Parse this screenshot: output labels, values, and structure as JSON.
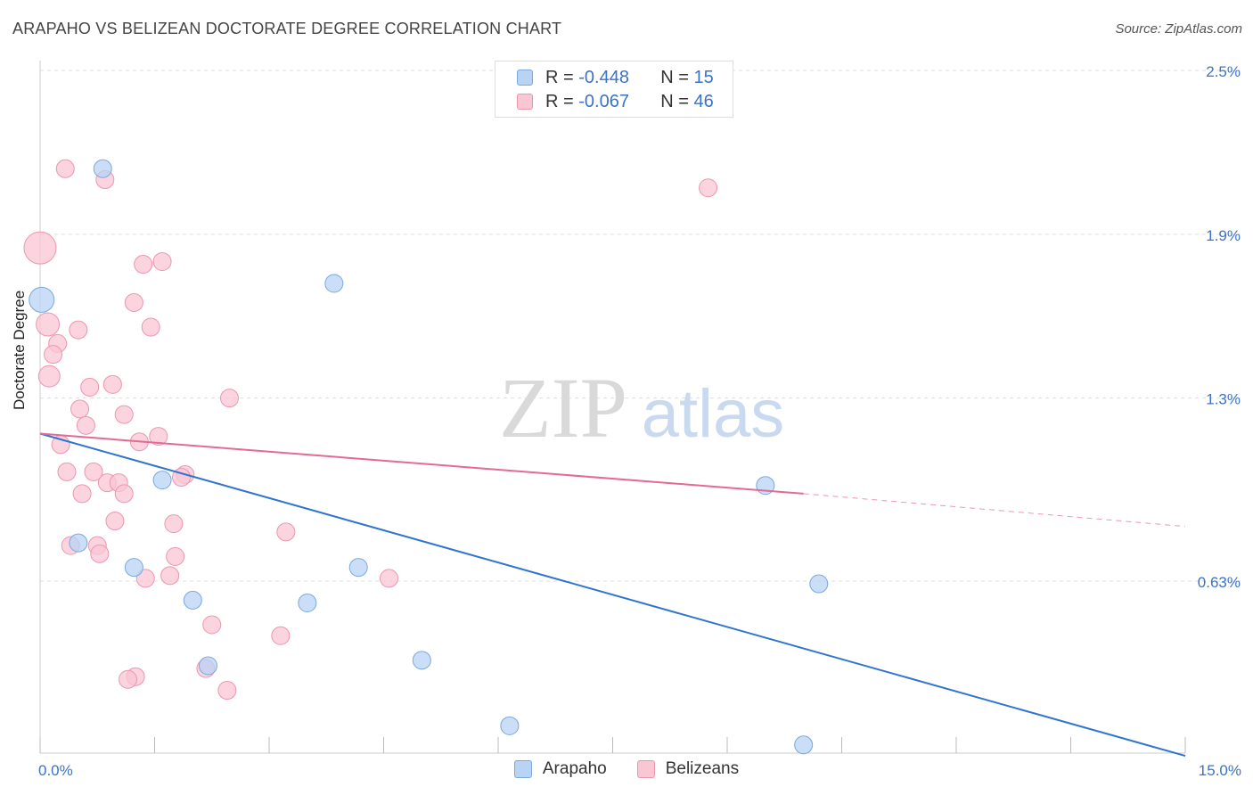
{
  "title": "ARAPAHO VS BELIZEAN DOCTORATE DEGREE CORRELATION CHART",
  "source": "Source: ZipAtlas.com",
  "watermark": {
    "zip": "ZIP",
    "atlas": "atlas"
  },
  "legend_top": [
    {
      "r_label": "R =",
      "r": "-0.448",
      "n_label": "N =",
      "n": "15"
    },
    {
      "r_label": "R =",
      "r": "-0.067",
      "n_label": "N =",
      "n": "46"
    }
  ],
  "colors": {
    "arapaho_fill": "#b8d3f4",
    "arapaho_stroke": "#7aa8df",
    "arapaho_line": "#2f74d0",
    "belize_fill": "#f9c6d4",
    "belize_stroke": "#ec96ad",
    "belize_line": "#e46a93",
    "tick_label": "#3a73c8"
  },
  "chart_data": {
    "type": "scatter",
    "title": "ARAPAHO VS BELIZEAN DOCTORATE DEGREE CORRELATION CHART",
    "xlabel": "",
    "ylabel": "Doctorate Degree",
    "xlim": [
      0.0,
      15.0
    ],
    "ylim": [
      0.0,
      2.5
    ],
    "x_tick_labels": [
      "0.0%",
      "15.0%"
    ],
    "y_ticks": [
      {
        "value": 2.5,
        "label": "2.5%"
      },
      {
        "value": 1.9,
        "label": "1.9%"
      },
      {
        "value": 1.3,
        "label": "1.3%"
      },
      {
        "value": 0.63,
        "label": "0.63%"
      }
    ],
    "series": [
      {
        "name": "Arapaho",
        "points": [
          [
            0.82,
            2.14,
            10
          ],
          [
            0.02,
            1.66,
            14
          ],
          [
            3.85,
            1.72,
            10
          ],
          [
            1.6,
            1.0,
            10
          ],
          [
            9.5,
            0.98,
            10
          ],
          [
            0.5,
            0.77,
            10
          ],
          [
            1.23,
            0.68,
            10
          ],
          [
            4.17,
            0.68,
            10
          ],
          [
            2.0,
            0.56,
            10
          ],
          [
            3.5,
            0.55,
            10
          ],
          [
            10.2,
            0.62,
            10
          ],
          [
            2.2,
            0.32,
            10
          ],
          [
            5.0,
            0.34,
            10
          ],
          [
            6.15,
            0.1,
            10
          ],
          [
            10.0,
            0.03,
            10
          ]
        ],
        "trend": {
          "x0": 0.0,
          "y0": 1.17,
          "x1": 15.0,
          "y1": -0.01
        }
      },
      {
        "name": "Belizeans",
        "points": [
          [
            0.0,
            1.85,
            18
          ],
          [
            0.1,
            1.57,
            13
          ],
          [
            0.33,
            2.14,
            10
          ],
          [
            0.85,
            2.1,
            10
          ],
          [
            8.75,
            2.07,
            10
          ],
          [
            1.6,
            1.8,
            10
          ],
          [
            1.35,
            1.79,
            10
          ],
          [
            1.23,
            1.65,
            10
          ],
          [
            1.45,
            1.56,
            10
          ],
          [
            0.5,
            1.55,
            10
          ],
          [
            0.23,
            1.5,
            10
          ],
          [
            0.17,
            1.46,
            10
          ],
          [
            0.12,
            1.38,
            12
          ],
          [
            0.65,
            1.34,
            10
          ],
          [
            0.95,
            1.35,
            10
          ],
          [
            2.48,
            1.3,
            10
          ],
          [
            0.52,
            1.26,
            10
          ],
          [
            1.1,
            1.24,
            10
          ],
          [
            0.6,
            1.2,
            10
          ],
          [
            1.55,
            1.16,
            10
          ],
          [
            1.3,
            1.14,
            10
          ],
          [
            0.27,
            1.13,
            10
          ],
          [
            0.35,
            1.03,
            10
          ],
          [
            0.7,
            1.03,
            10
          ],
          [
            0.88,
            0.99,
            10
          ],
          [
            1.03,
            0.99,
            10
          ],
          [
            1.1,
            0.95,
            10
          ],
          [
            0.55,
            0.95,
            10
          ],
          [
            1.9,
            1.02,
            10
          ],
          [
            1.85,
            1.01,
            10
          ],
          [
            0.98,
            0.85,
            10
          ],
          [
            1.75,
            0.84,
            10
          ],
          [
            3.22,
            0.81,
            10
          ],
          [
            0.4,
            0.76,
            10
          ],
          [
            0.75,
            0.76,
            10
          ],
          [
            0.78,
            0.73,
            10
          ],
          [
            1.77,
            0.72,
            10
          ],
          [
            1.7,
            0.65,
            10
          ],
          [
            1.38,
            0.64,
            10
          ],
          [
            4.57,
            0.64,
            10
          ],
          [
            2.25,
            0.47,
            10
          ],
          [
            3.15,
            0.43,
            10
          ],
          [
            2.17,
            0.31,
            10
          ],
          [
            1.25,
            0.28,
            10
          ],
          [
            1.15,
            0.27,
            10
          ],
          [
            2.45,
            0.23,
            10
          ]
        ],
        "trend": {
          "x0": 0.0,
          "y0": 1.17,
          "x1": 10.0,
          "y1": 0.95
        },
        "trend_extension": {
          "x0": 10.0,
          "y0": 0.95,
          "x1": 15.0,
          "y1": 0.83
        }
      }
    ]
  },
  "bottom_legend": [
    {
      "label": "Arapaho"
    },
    {
      "label": "Belizeans"
    }
  ]
}
